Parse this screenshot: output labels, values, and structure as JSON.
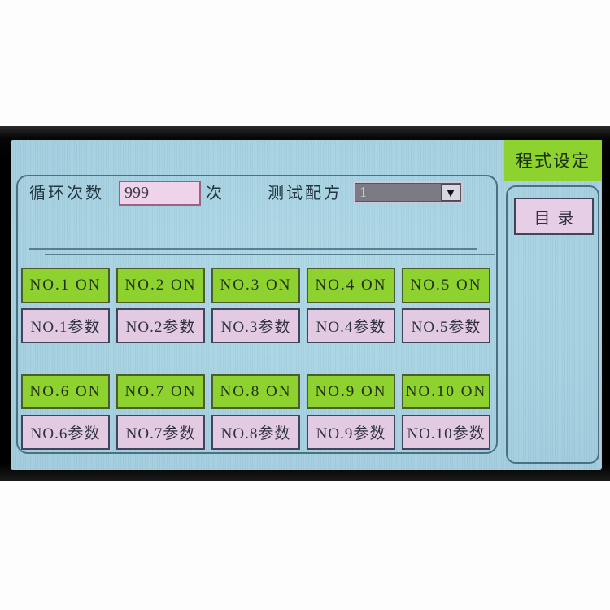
{
  "screen": {
    "title": "程式设定",
    "menu_button_label": "目录"
  },
  "header": {
    "cycle_count_label": "循环次数",
    "cycle_count_value": "999",
    "cycle_count_unit": "次",
    "recipe_label": "测试配方",
    "recipe_selected": "1",
    "dropdown_icon": "▼"
  },
  "channels": [
    {
      "on_label": "NO.1 ON",
      "param_label": "NO.1参数"
    },
    {
      "on_label": "NO.2 ON",
      "param_label": "NO.2参数"
    },
    {
      "on_label": "NO.3 ON",
      "param_label": "NO.3参数"
    },
    {
      "on_label": "NO.4 ON",
      "param_label": "NO.4参数"
    },
    {
      "on_label": "NO.5 ON",
      "param_label": "NO.5参数"
    },
    {
      "on_label": "NO.6 ON",
      "param_label": "NO.6参数"
    },
    {
      "on_label": "NO.7 ON",
      "param_label": "NO.7参数"
    },
    {
      "on_label": "NO.8 ON",
      "param_label": "NO.8参数"
    },
    {
      "on_label": "NO.9 ON",
      "param_label": "NO.9参数"
    },
    {
      "on_label": "NO.10 ON",
      "param_label": "NO.10参数"
    }
  ],
  "colors": {
    "screen_bg": "#a6d4e3",
    "accent_green": "#8dd22f",
    "button_pink": "#e2cbe2",
    "input_pink": "#eed3ea",
    "dropdown_bg": "#7b7b83",
    "panel_border": "#4a7181",
    "bezel_black": "#0a0a0a"
  }
}
